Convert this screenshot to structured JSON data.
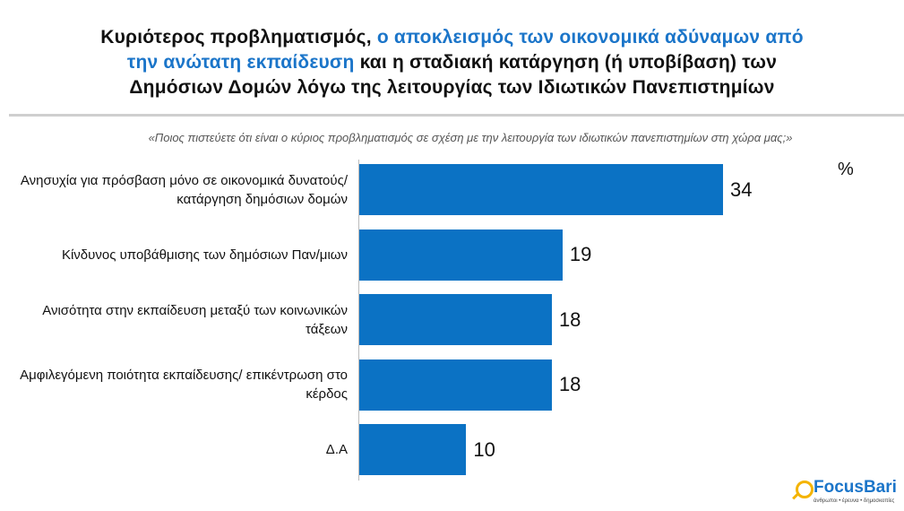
{
  "chart_data": {
    "type": "bar",
    "orientation": "horizontal",
    "title_lines": [
      [
        {
          "text": "Κυριότερος προβληματισμός, ",
          "color": "#111111"
        },
        {
          "text": "ο αποκλεισμός των οικονομικά αδύναμων από",
          "color": "#1b75c9"
        }
      ],
      [
        {
          "text": "την ανώτατη εκπαίδευση",
          "color": "#1b75c9"
        },
        {
          "text": " και η σταδιακή κατάργηση (ή υποβίβαση) των",
          "color": "#111111"
        }
      ],
      [
        {
          "text": "Δημόσιων Δομών λόγω της λειτουργίας των Ιδιωτικών Πανεπιστημίων",
          "color": "#111111"
        }
      ]
    ],
    "subtitle": "«Ποιος πιστεύετε ότι είναι ο κύριος προβληματισμός σε σχέση με την λειτουργία των ιδιωτικών πανεπιστημίων στη χώρα μας;»",
    "unit": "%",
    "categories": [
      "Ανησυχία για πρόσβαση μόνο σε οικονομικά δυνατούς/ κατάργηση δημόσιων δομών",
      "Κίνδυνος υποβάθμισης των δημόσιων Παν/μιων",
      "Ανισότητα στην εκπαίδευση μεταξύ των κοινωνικών τάξεων",
      "Αμφιλεγόμενη ποιότητα εκπαίδευσης/ επικέντρωση στο κέρδος",
      "Δ.Α"
    ],
    "values": [
      34,
      19,
      18,
      18,
      10
    ],
    "color": "#0b72c4",
    "logo": "FocusBari",
    "tagline": "άνθρωποι • έρευνα • δημοσκοπίες"
  }
}
